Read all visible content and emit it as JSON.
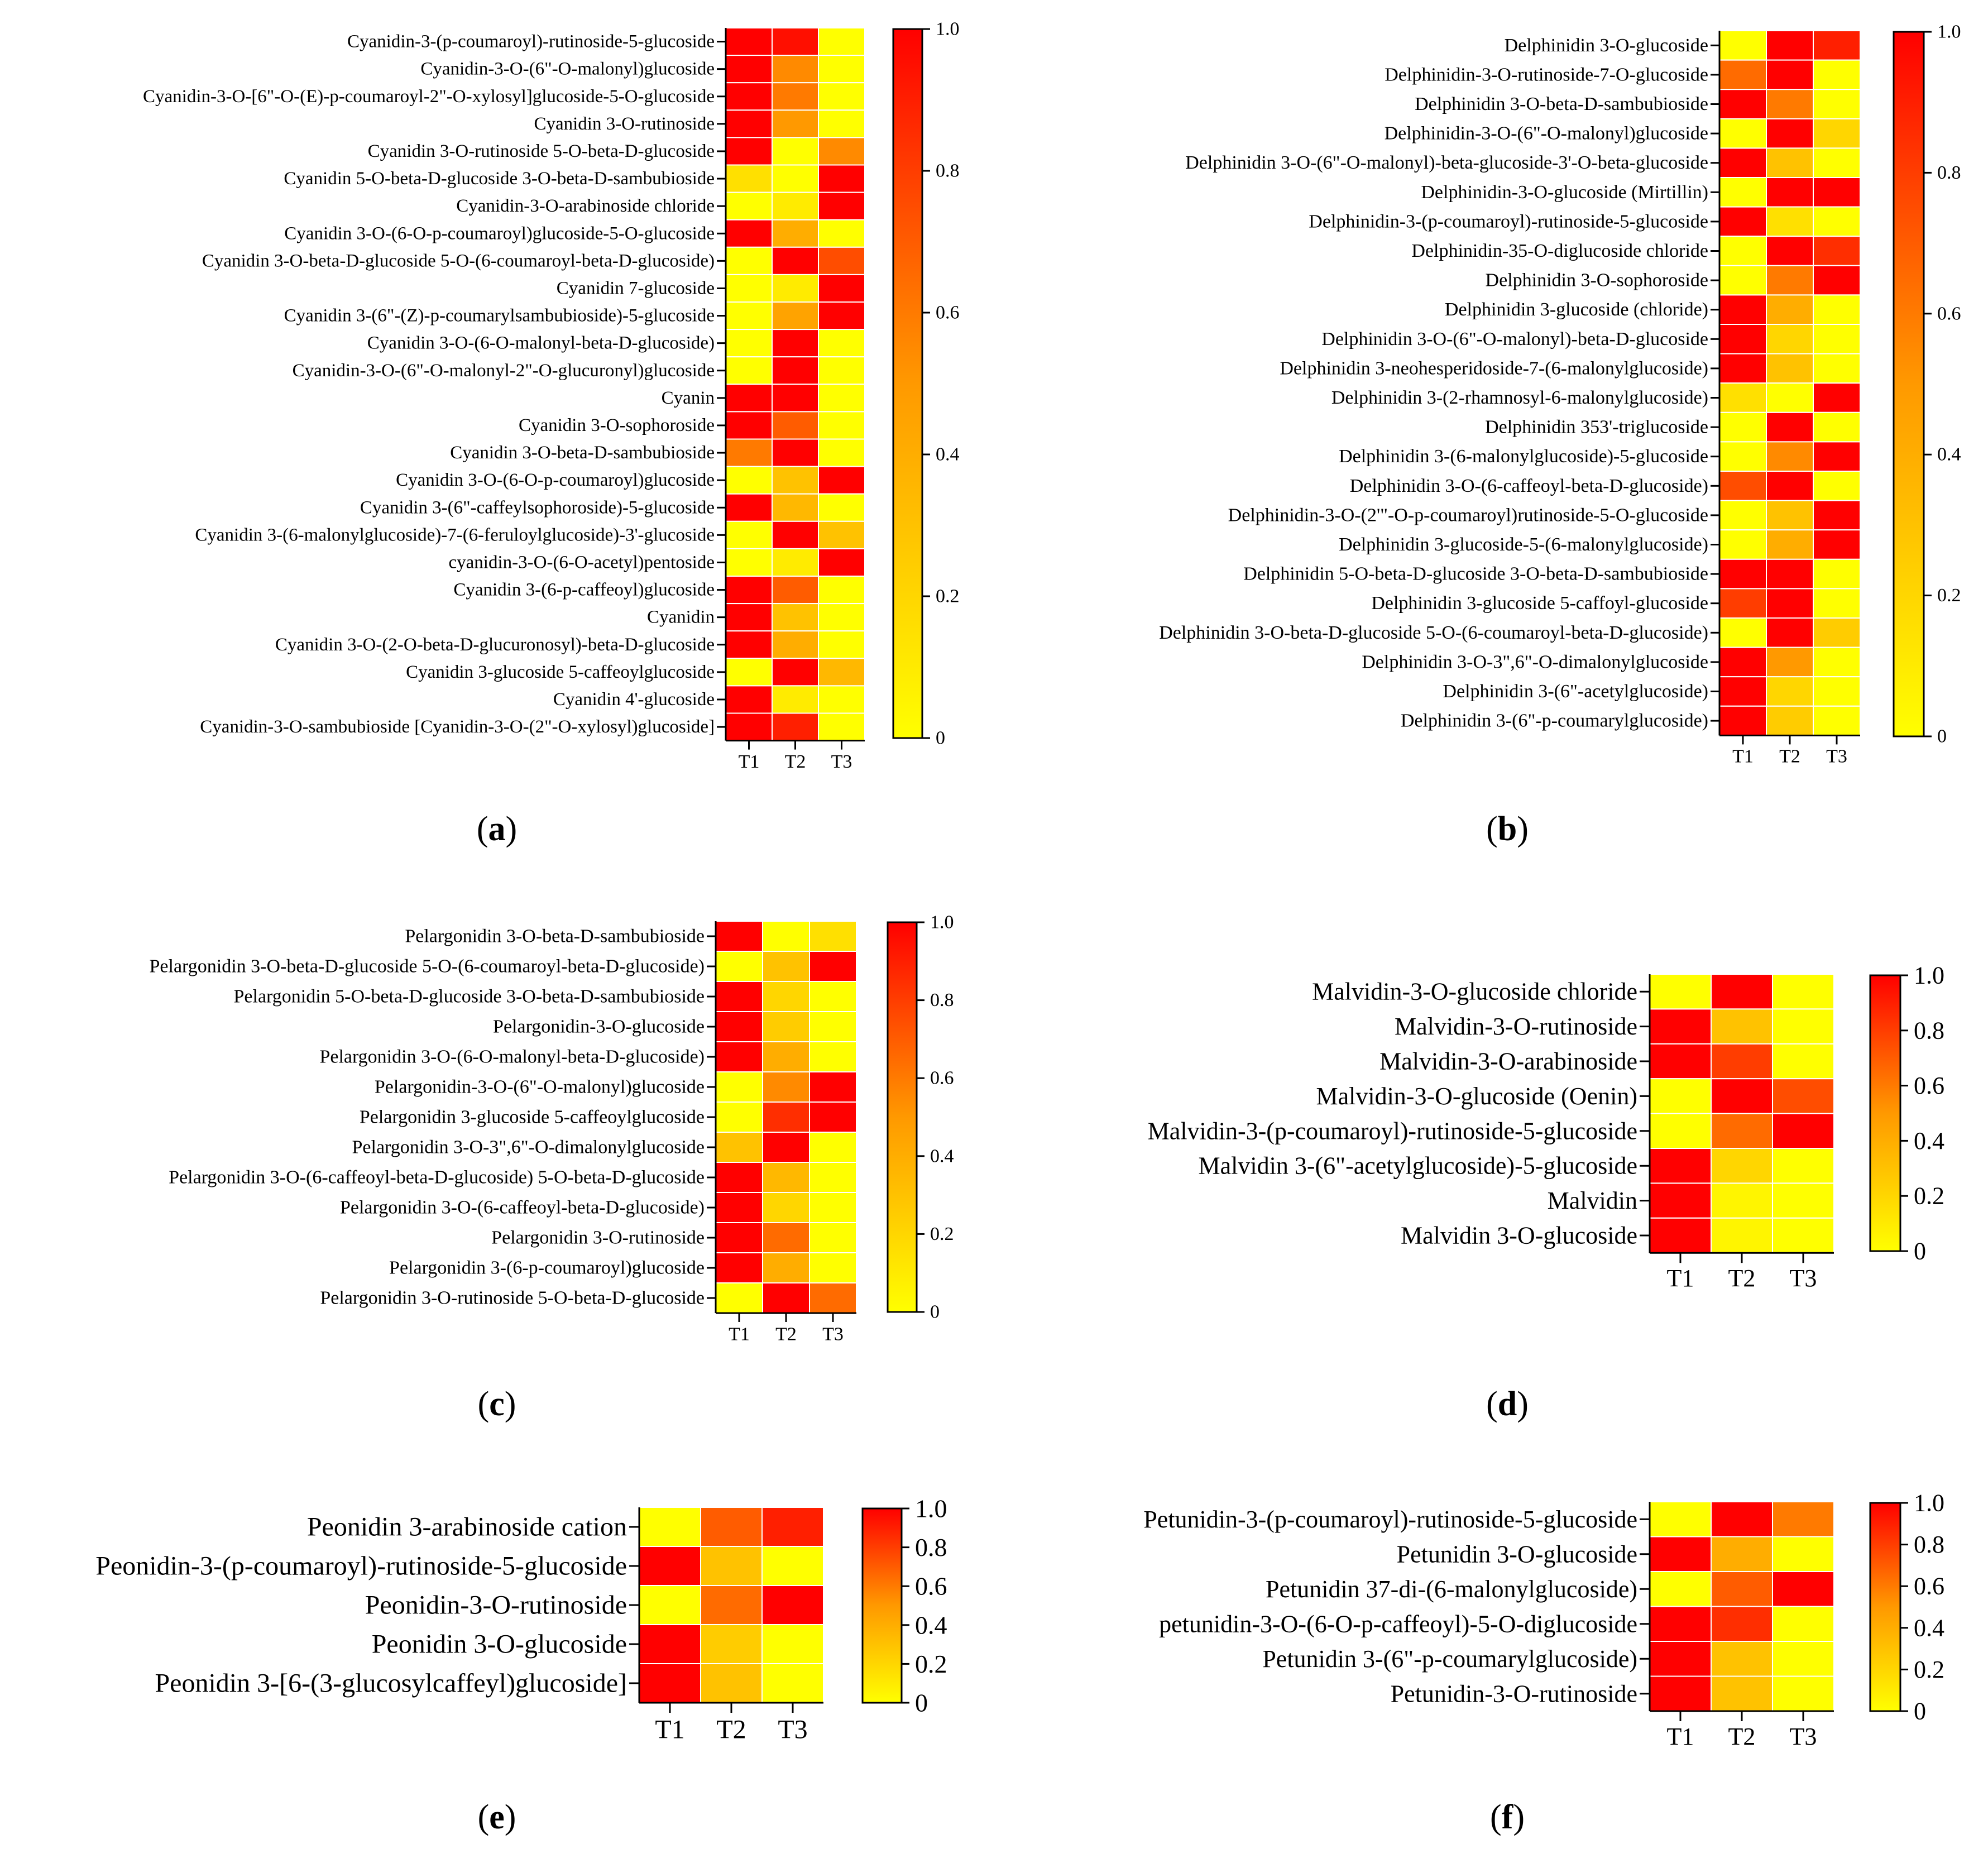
{
  "color_scale": {
    "low": "#ffff00",
    "mid": "#ff9900",
    "high": "#ff0000",
    "grid": "#ffffff",
    "axis": "#000000"
  },
  "chart_data": [
    {
      "type": "heatmap",
      "panel_label": "a",
      "columns": [
        "T1",
        "T2",
        "T3"
      ],
      "colorbar": {
        "ticks": [
          "1.0",
          "0.8",
          "0.6",
          "0.4",
          "0.2",
          "0"
        ],
        "range": [
          0,
          1
        ]
      },
      "rows": [
        "Cyanidin-3-(p-coumaroyl)-rutinoside-5-glucoside",
        "Cyanidin-3-O-(6\"-O-malonyl)glucoside",
        "Cyanidin-3-O-[6\"-O-(E)-p-coumaroyl-2\"-O-xylosyl]glucoside-5-O-glucoside",
        "Cyanidin 3-O-rutinoside",
        "Cyanidin 3-O-rutinoside 5-O-beta-D-glucoside",
        "Cyanidin 5-O-beta-D-glucoside 3-O-beta-D-sambubioside",
        "Cyanidin-3-O-arabinoside chloride",
        "Cyanidin 3-O-(6-O-p-coumaroyl)glucoside-5-O-glucoside",
        "Cyanidin 3-O-beta-D-glucoside 5-O-(6-coumaroyl-beta-D-glucoside)",
        "Cyanidin 7-glucoside",
        "Cyanidin 3-(6\"-(Z)-p-coumarylsambubioside)-5-glucoside",
        "Cyanidin 3-O-(6-O-malonyl-beta-D-glucoside)",
        "Cyanidin-3-O-(6\"-O-malonyl-2\"-O-glucuronyl)glucoside",
        "Cyanin",
        "Cyanidin 3-O-sophoroside",
        "Cyanidin 3-O-beta-D-sambubioside",
        "Cyanidin 3-O-(6-O-p-coumaroyl)glucoside",
        "Cyanidin 3-(6\"-caffeylsophoroside)-5-glucoside",
        "Cyanidin 3-(6-malonylglucoside)-7-(6-feruloylglucoside)-3'-glucoside",
        "cyanidin-3-O-(6-O-acetyl)pentoside",
        "Cyanidin 3-(6-p-caffeoyl)glucoside",
        "Cyanidin",
        "Cyanidin 3-O-(2-O-beta-D-glucuronosyl)-beta-D-glucoside",
        "Cyanidin 3-glucoside 5-caffeoylglucoside",
        "Cyanidin 4'-glucoside",
        "Cyanidin-3-O-sambubioside [Cyanidin-3-O-(2\"-O-xylosyl)glucoside]"
      ],
      "values": [
        [
          1,
          0.95,
          0
        ],
        [
          1,
          0.55,
          0
        ],
        [
          1,
          0.6,
          0
        ],
        [
          1,
          0.5,
          0
        ],
        [
          1,
          0,
          0.55
        ],
        [
          0.15,
          0,
          1
        ],
        [
          0,
          0.1,
          1
        ],
        [
          1,
          0.4,
          0
        ],
        [
          0,
          1,
          0.75
        ],
        [
          0,
          0.1,
          1
        ],
        [
          0,
          0.45,
          1
        ],
        [
          0,
          1,
          0
        ],
        [
          0,
          1,
          0
        ],
        [
          1,
          1,
          0
        ],
        [
          1,
          0.7,
          0
        ],
        [
          0.6,
          1,
          0
        ],
        [
          0,
          0.3,
          1
        ],
        [
          1,
          0.35,
          0
        ],
        [
          0,
          1,
          0.3
        ],
        [
          0,
          0.1,
          1
        ],
        [
          1,
          0.7,
          0
        ],
        [
          1,
          0.3,
          0
        ],
        [
          1,
          0.4,
          0
        ],
        [
          0,
          1,
          0.35
        ],
        [
          1,
          0.1,
          0
        ],
        [
          1,
          0.9,
          0
        ]
      ]
    },
    {
      "type": "heatmap",
      "panel_label": "b",
      "columns": [
        "T1",
        "T2",
        "T3"
      ],
      "colorbar": {
        "ticks": [
          "1.0",
          "0.8",
          "0.6",
          "0.4",
          "0.2",
          "0"
        ],
        "range": [
          0,
          1
        ]
      },
      "rows": [
        "Delphinidin 3-O-glucoside",
        "Delphinidin-3-O-rutinoside-7-O-glucoside",
        "Delphinidin 3-O-beta-D-sambubioside",
        "Delphinidin-3-O-(6\"-O-malonyl)glucoside",
        "Delphinidin 3-O-(6\"-O-malonyl)-beta-glucoside-3'-O-beta-glucoside",
        "Delphinidin-3-O-glucoside (Mirtillin)",
        "Delphinidin-3-(p-coumaroyl)-rutinoside-5-glucoside",
        "Delphinidin-35-O-diglucoside chloride",
        "Delphinidin 3-O-sophoroside",
        "Delphinidin 3-glucoside (chloride)",
        "Delphinidin 3-O-(6\"-O-malonyl)-beta-D-glucoside",
        "Delphinidin 3-neohesperidoside-7-(6-malonylglucoside)",
        "Delphinidin 3-(2-rhamnosyl-6-malonylglucoside)",
        "Delphinidin 353'-triglucoside",
        "Delphinidin 3-(6-malonylglucoside)-5-glucoside",
        "Delphinidin 3-O-(6-caffeoyl-beta-D-glucoside)",
        "Delphinidin-3-O-(2'\"-O-p-coumaroyl)rutinoside-5-O-glucoside",
        "Delphinidin 3-glucoside-5-(6-malonylglucoside)",
        "Delphinidin 5-O-beta-D-glucoside 3-O-beta-D-sambubioside",
        "Delphinidin 3-glucoside 5-caffoyl-glucoside",
        "Delphinidin 3-O-beta-D-glucoside 5-O-(6-coumaroyl-beta-D-glucoside)",
        "Delphinidin 3-O-3\",6\"-O-dimalonylglucoside",
        "Delphinidin 3-(6\"-acetylglucoside)",
        "Delphinidin 3-(6\"-p-coumarylglucoside)"
      ],
      "values": [
        [
          0,
          1,
          0.9
        ],
        [
          0.65,
          1,
          0
        ],
        [
          1,
          0.6,
          0
        ],
        [
          0,
          1,
          0.2
        ],
        [
          1,
          0.3,
          0
        ],
        [
          0,
          1,
          1
        ],
        [
          1,
          0.15,
          0
        ],
        [
          0,
          1,
          0.85
        ],
        [
          0,
          0.6,
          1
        ],
        [
          1,
          0.4,
          0
        ],
        [
          1,
          0.2,
          0
        ],
        [
          1,
          0.3,
          0
        ],
        [
          0.15,
          0,
          1
        ],
        [
          0,
          1,
          0
        ],
        [
          0,
          0.55,
          1
        ],
        [
          0.75,
          1,
          0
        ],
        [
          0,
          0.3,
          1
        ],
        [
          0,
          0.4,
          1
        ],
        [
          1,
          1,
          0
        ],
        [
          0.8,
          1,
          0
        ],
        [
          0,
          1,
          0.25
        ],
        [
          1,
          0.5,
          0
        ],
        [
          1,
          0.2,
          0
        ],
        [
          1,
          0.25,
          0
        ]
      ]
    },
    {
      "type": "heatmap",
      "panel_label": "c",
      "columns": [
        "T1",
        "T2",
        "T3"
      ],
      "colorbar": {
        "ticks": [
          "1.0",
          "0.8",
          "0.6",
          "0.4",
          "0.2",
          "0"
        ],
        "range": [
          0,
          1
        ]
      },
      "rows": [
        "Pelargonidin 3-O-beta-D-sambubioside",
        "Pelargonidin 3-O-beta-D-glucoside 5-O-(6-coumaroyl-beta-D-glucoside)",
        "Pelargonidin 5-O-beta-D-glucoside 3-O-beta-D-sambubioside",
        "Pelargonidin-3-O-glucoside",
        "Pelargonidin 3-O-(6-O-malonyl-beta-D-glucoside)",
        "Pelargonidin-3-O-(6\"-O-malonyl)glucoside",
        "Pelargonidin 3-glucoside 5-caffeoylglucoside",
        "Pelargonidin 3-O-3\",6\"-O-dimalonylglucoside",
        "Pelargonidin 3-O-(6-caffeoyl-beta-D-glucoside) 5-O-beta-D-glucoside",
        "Pelargonidin 3-O-(6-caffeoyl-beta-D-glucoside)",
        "Pelargonidin 3-O-rutinoside",
        "Pelargonidin 3-(6-p-coumaroyl)glucoside",
        "Pelargonidin 3-O-rutinoside 5-O-beta-D-glucoside"
      ],
      "values": [
        [
          1,
          0,
          0.15
        ],
        [
          0,
          0.3,
          1
        ],
        [
          1,
          0.2,
          0
        ],
        [
          1,
          0.25,
          0
        ],
        [
          1,
          0.4,
          0
        ],
        [
          0,
          0.55,
          1
        ],
        [
          0,
          0.85,
          1
        ],
        [
          0.3,
          1,
          0
        ],
        [
          1,
          0.35,
          0
        ],
        [
          1,
          0.2,
          0
        ],
        [
          1,
          0.65,
          0
        ],
        [
          1,
          0.4,
          0
        ],
        [
          0,
          1,
          0.65
        ]
      ]
    },
    {
      "type": "heatmap",
      "panel_label": "d",
      "columns": [
        "T1",
        "T2",
        "T3"
      ],
      "colorbar": {
        "ticks": [
          "1.0",
          "0.8",
          "0.6",
          "0.4",
          "0.2",
          "0"
        ],
        "range": [
          0,
          1
        ]
      },
      "rows": [
        "Malvidin-3-O-glucoside chloride",
        "Malvidin-3-O-rutinoside",
        "Malvidin-3-O-arabinoside",
        "Malvidin-3-O-glucoside (Oenin)",
        "Malvidin-3-(p-coumaroyl)-rutinoside-5-glucoside",
        "Malvidin 3-(6\"-acetylglucoside)-5-glucoside",
        "Malvidin",
        "Malvidin 3-O-glucoside"
      ],
      "values": [
        [
          0,
          1,
          0
        ],
        [
          1,
          0.3,
          0
        ],
        [
          1,
          0.8,
          0
        ],
        [
          0,
          1,
          0.75
        ],
        [
          0,
          0.65,
          1
        ],
        [
          1,
          0.2,
          0
        ],
        [
          1,
          0.05,
          0
        ],
        [
          1,
          0.05,
          0
        ]
      ]
    },
    {
      "type": "heatmap",
      "panel_label": "e",
      "columns": [
        "T1",
        "T2",
        "T3"
      ],
      "colorbar": {
        "ticks": [
          "1.0",
          "0.8",
          "0.6",
          "0.4",
          "0.2",
          "0"
        ],
        "range": [
          0,
          1
        ]
      },
      "rows": [
        "Peonidin 3-arabinoside cation",
        "Peonidin-3-(p-coumaroyl)-rutinoside-5-glucoside",
        "Peonidin-3-O-rutinoside",
        "Peonidin 3-O-glucoside",
        "Peonidin 3-[6-(3-glucosylcaffeyl)glucoside]"
      ],
      "values": [
        [
          0,
          0.7,
          0.9
        ],
        [
          1,
          0.3,
          0
        ],
        [
          0,
          0.65,
          1
        ],
        [
          1,
          0.25,
          0
        ],
        [
          1,
          0.3,
          0
        ]
      ]
    },
    {
      "type": "heatmap",
      "panel_label": "f",
      "columns": [
        "T1",
        "T2",
        "T3"
      ],
      "colorbar": {
        "ticks": [
          "1.0",
          "0.8",
          "0.6",
          "0.4",
          "0.2",
          "0"
        ],
        "range": [
          0,
          1
        ]
      },
      "rows": [
        "Petunidin-3-(p-coumaroyl)-rutinoside-5-glucoside",
        "Petunidin 3-O-glucoside",
        "Petunidin 37-di-(6-malonylglucoside)",
        "petunidin-3-O-(6-O-p-caffeoyl)-5-O-diglucoside",
        "Petunidin 3-(6\"-p-coumarylglucoside)",
        "Petunidin-3-O-rutinoside"
      ],
      "values": [
        [
          0,
          1,
          0.6
        ],
        [
          1,
          0.4,
          0
        ],
        [
          0,
          0.7,
          1
        ],
        [
          1,
          0.85,
          0
        ],
        [
          1,
          0.3,
          0
        ],
        [
          1,
          0.3,
          0
        ]
      ]
    }
  ]
}
